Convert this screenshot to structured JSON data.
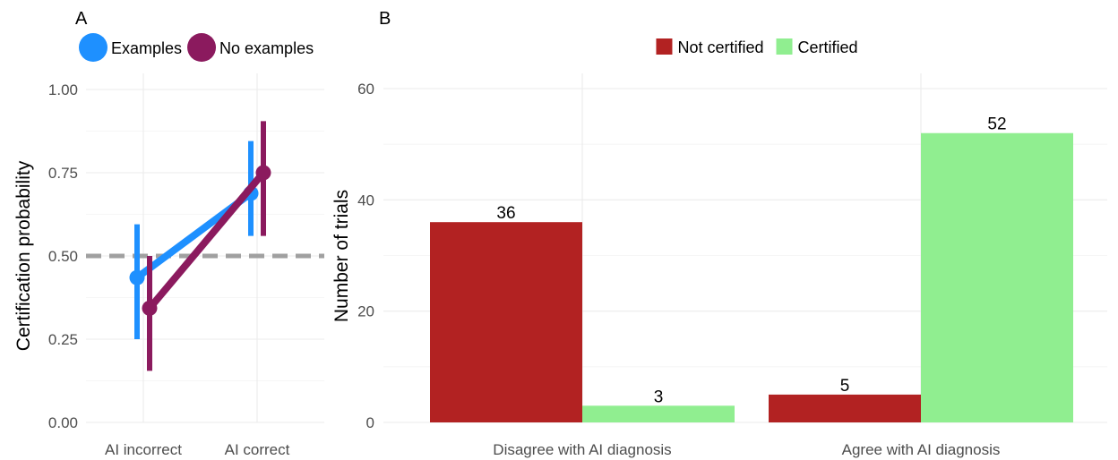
{
  "chart_data": [
    {
      "panel": "A",
      "type": "line",
      "ylabel": "Certification probability",
      "xlabel": "",
      "ylim": [
        0,
        1.0
      ],
      "y_ticks": [
        "0.00",
        "0.25",
        "0.50",
        "0.75",
        "1.00"
      ],
      "categories": [
        "AI incorrect",
        "AI correct"
      ],
      "reference_line": {
        "y": 0.5,
        "style": "dashed",
        "color": "#a0a0a0"
      },
      "legend_position": "top",
      "grid": true,
      "series": [
        {
          "name": "Examples",
          "color": "#1e90ff",
          "values": [
            0.435,
            0.688
          ],
          "lower": [
            0.25,
            0.56
          ],
          "upper": [
            0.595,
            0.845
          ]
        },
        {
          "name": "No examples",
          "color": "#8b1a5e",
          "values": [
            0.343,
            0.75
          ],
          "lower": [
            0.155,
            0.56
          ],
          "upper": [
            0.5,
            0.905
          ]
        }
      ]
    },
    {
      "panel": "B",
      "type": "bar",
      "ylabel": "Number of trials",
      "xlabel": "",
      "ylim": [
        0,
        60
      ],
      "y_ticks": [
        "0",
        "20",
        "40",
        "60"
      ],
      "categories": [
        "Disagree with AI diagnosis",
        "Agree with AI diagnosis"
      ],
      "legend_position": "top",
      "grid": true,
      "series": [
        {
          "name": "Not certified",
          "color": "#b22222",
          "values": [
            36,
            5
          ],
          "labels": [
            "36",
            "5"
          ]
        },
        {
          "name": "Certified",
          "color": "#90ee90",
          "values": [
            3,
            52
          ],
          "labels": [
            "3",
            "52"
          ]
        }
      ]
    }
  ]
}
